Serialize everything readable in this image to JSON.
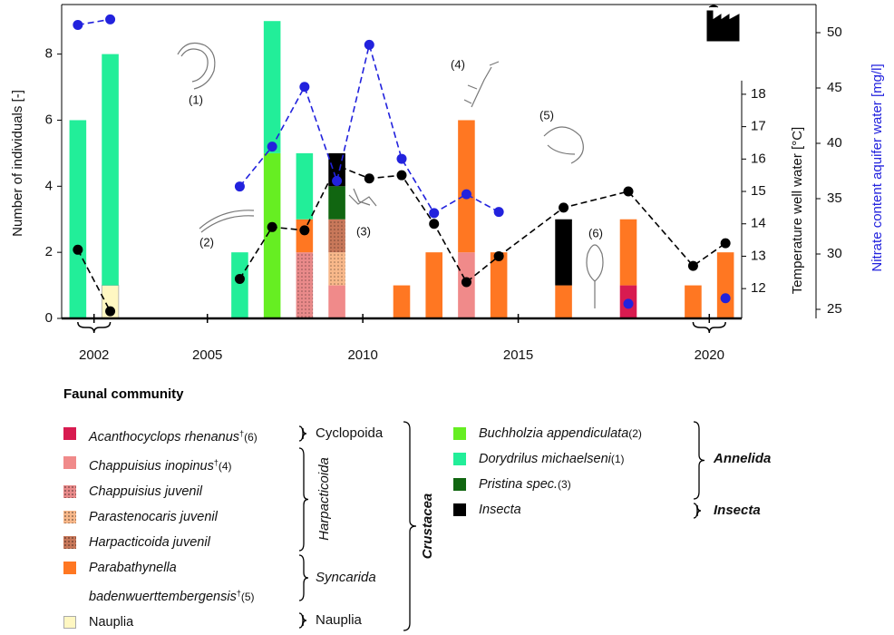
{
  "chart_data": {
    "type": "bar",
    "stacked": true,
    "ylabel": "Number of individuals [-]",
    "y2label": "Temperature well water [°C]",
    "y3label": "Nitrate content aquifer water [mg/l]",
    "x": [
      0,
      1,
      2,
      3,
      4,
      5,
      6,
      7,
      8,
      9,
      10,
      11,
      12,
      13,
      14,
      15,
      16,
      17,
      18,
      19,
      20
    ],
    "xlim": [
      -0.5,
      20.5
    ],
    "xticks": [
      {
        "value": 0.5,
        "label": "2002"
      },
      {
        "value": 4,
        "label": "2005"
      },
      {
        "value": 8.8,
        "label": "2010"
      },
      {
        "value": 13.6,
        "label": "2015"
      },
      {
        "value": 19.5,
        "label": "2020"
      }
    ],
    "ylim": [
      0,
      9.5
    ],
    "yticks": [
      0,
      2,
      4,
      6,
      8
    ],
    "y2lim": [
      11.08,
      20.77
    ],
    "y2ticks": [
      12,
      13,
      14,
      15,
      16,
      17,
      18
    ],
    "y3lim": [
      24.18,
      52.54
    ],
    "y3ticks": [
      25,
      30,
      35,
      40,
      45,
      50
    ],
    "series": [
      {
        "name": "Acanthocyclops rhenanus",
        "mark": "†",
        "ref": "(6)",
        "italic": true,
        "color": "#d81b50",
        "values": [
          0,
          0,
          0,
          0,
          0,
          0,
          0,
          0,
          0,
          0,
          0,
          0,
          0,
          0,
          0,
          0,
          0,
          1,
          0,
          0,
          0
        ]
      },
      {
        "name": "Chappuisius inopinus",
        "mark": "†",
        "ref": "(4)",
        "italic": true,
        "color": "#f08a8a",
        "values": [
          0,
          0,
          0,
          0,
          0,
          0,
          0,
          0,
          1,
          0,
          0,
          0,
          2,
          0,
          0,
          0,
          0,
          0,
          0,
          0,
          0
        ]
      },
      {
        "name": "Chappuisius juvenil",
        "italic": true,
        "color": "#e98a8a",
        "pattern": "dots",
        "values": [
          0,
          0,
          0,
          0,
          0,
          0,
          0,
          2,
          0,
          0,
          0,
          0,
          0,
          0,
          0,
          0,
          0,
          0,
          0,
          0,
          0
        ]
      },
      {
        "name": "Parastenocaris juvenil",
        "italic": true,
        "color": "#f8b88a",
        "pattern": "dots",
        "values": [
          0,
          0,
          0,
          0,
          0,
          0,
          0,
          0,
          1,
          0,
          0,
          0,
          0,
          0,
          0,
          0,
          0,
          0,
          0,
          0,
          0
        ]
      },
      {
        "name": "Harpacticoida juvenil",
        "italic": true,
        "color": "#c8785a",
        "pattern": "dots",
        "values": [
          0,
          0,
          0,
          0,
          0,
          0,
          0,
          0,
          1,
          0,
          0,
          0,
          0,
          0,
          0,
          0,
          0,
          0,
          0,
          0,
          0
        ]
      },
      {
        "name": "Parabathynella badenwuerttembergensis",
        "mark": "†",
        "ref": "(5)",
        "italic": true,
        "color": "#ff7722",
        "values": [
          0,
          0,
          0,
          0,
          0,
          0,
          0,
          1,
          0,
          0,
          1,
          2,
          4,
          2,
          0,
          1,
          0,
          2,
          0,
          1,
          2
        ]
      },
      {
        "name": "Nauplia",
        "italic": false,
        "color": "#fff7c2",
        "values": [
          0,
          1,
          0,
          0,
          0,
          0,
          0,
          0,
          0,
          0,
          0,
          0,
          0,
          0,
          0,
          0,
          0,
          0,
          0,
          0,
          0
        ]
      },
      {
        "name": "Buchholzia appendiculata",
        "ref": "(2)",
        "italic": true,
        "color": "#66ee22",
        "values": [
          0,
          0,
          0,
          0,
          0,
          0,
          5,
          0,
          0,
          0,
          0,
          0,
          0,
          0,
          0,
          0,
          0,
          0,
          0,
          0,
          0
        ]
      },
      {
        "name": "Dorydrilus michaelseni",
        "ref": "(1)",
        "italic": true,
        "color": "#22ee99",
        "values": [
          6,
          7,
          0,
          0,
          0,
          2,
          4,
          2,
          0,
          0,
          0,
          0,
          0,
          0,
          0,
          0,
          0,
          0,
          0,
          0,
          0
        ]
      },
      {
        "name": "Pristina spec.",
        "ref": "(3)",
        "italic": true,
        "color": "#116611",
        "values": [
          0,
          0,
          0,
          0,
          0,
          0,
          0,
          0,
          1,
          0,
          0,
          0,
          0,
          0,
          0,
          0,
          0,
          0,
          0,
          0,
          0
        ]
      },
      {
        "name": "Insecta",
        "italic": true,
        "color": "#000000",
        "values": [
          0,
          0,
          0,
          0,
          0,
          0,
          0,
          0,
          1,
          0,
          0,
          0,
          0,
          0,
          0,
          2,
          0,
          0,
          0,
          0,
          0
        ]
      }
    ],
    "lines": [
      {
        "type": "line",
        "axis": "y2",
        "color": "#000000",
        "x": [
          0,
          1,
          3,
          5,
          6,
          7,
          8,
          9,
          10,
          11,
          12,
          13,
          15,
          17,
          19,
          20
        ],
        "values": [
          13.2,
          11.3,
          null,
          12.3,
          13.9,
          13.8,
          15.8,
          15.4,
          15.5,
          14.0,
          12.2,
          13.0,
          14.5,
          15.0,
          12.7,
          13.4
        ]
      },
      {
        "type": "line",
        "axis": "y3",
        "color": "#2222dd",
        "x": [
          0,
          1,
          3,
          5,
          6,
          7,
          8,
          9,
          10,
          11,
          12,
          13,
          15,
          17,
          19,
          20
        ],
        "values": [
          50.7,
          51.2,
          null,
          36.1,
          39.7,
          45.1,
          36.6,
          48.9,
          38.6,
          33.7,
          35.4,
          33.8,
          null,
          25.5,
          null,
          26.0
        ]
      }
    ],
    "annotations": [
      "(1)",
      "(2)",
      "(3)",
      "(4)",
      "(5)",
      "(6)"
    ],
    "legend_title": "Faunal community",
    "groups": [
      "Cyclopoida",
      "Harpacticoida",
      "Syncarida",
      "Nauplia",
      "Crustacea",
      "Annelida",
      "Insecta"
    ]
  }
}
